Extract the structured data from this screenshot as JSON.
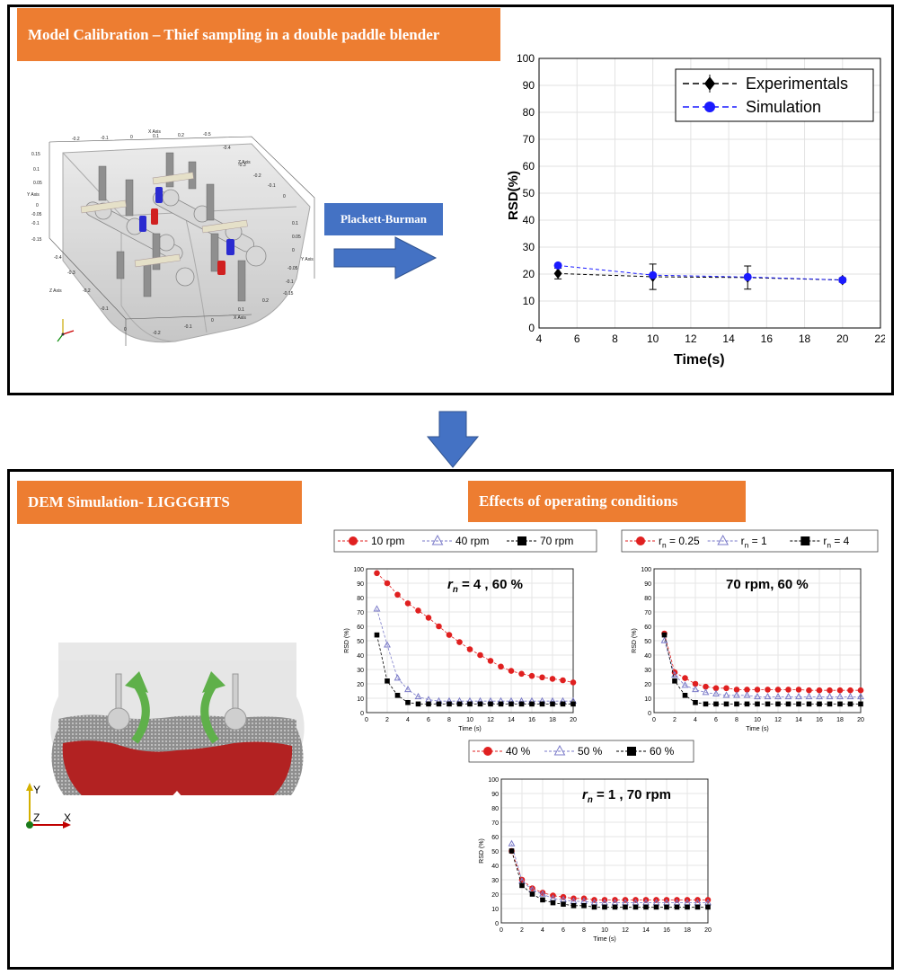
{
  "top_panel": {
    "title": "Model Calibration – Thief sampling in a double paddle blender",
    "method_label": "Plackett-Burman",
    "cad_axes": {
      "x_label": "X Axis",
      "y_label": "Y Axis",
      "z_label": "Z Axis",
      "top_ticks": [
        "-0.2",
        "-0.1",
        "0",
        "0.1",
        "0.2",
        "-0.5"
      ],
      "right_ticks": [
        "-0.4",
        "-0.3",
        "-0.2",
        "-0.1",
        "0",
        "0.05",
        "0.1",
        "0.15"
      ],
      "left_ticks": [
        "0.15",
        "0.1",
        "0.05",
        "0",
        "-0.05",
        "-0.1",
        "-0.15"
      ],
      "bottom_left_ticks": [
        "-0.4",
        "-0.3",
        "-0.2",
        "-0.1",
        "0"
      ],
      "bottom_ticks": [
        "0",
        "-0.2",
        "-0.1",
        "0",
        "0.1",
        "0.2"
      ],
      "right_axis_ticks": [
        "0.1",
        "0.05",
        "0",
        "-0.05",
        "-0.1",
        "-0.15"
      ]
    }
  },
  "bottom_panel": {
    "title_left": "DEM Simulation- LIGGGHTS",
    "title_right": "Effects of operating conditions",
    "axis_triad": {
      "y": "Y",
      "z": "Z",
      "x": "X"
    }
  },
  "chart_data": [
    {
      "id": "calibration",
      "type": "line",
      "xlabel": "Time(s)",
      "ylabel": "RSD(%)",
      "xlim": [
        4,
        22
      ],
      "ylim": [
        0,
        100
      ],
      "xticks": [
        4,
        6,
        8,
        10,
        12,
        14,
        16,
        18,
        20,
        22
      ],
      "yticks": [
        0,
        10,
        20,
        30,
        40,
        50,
        60,
        70,
        80,
        90,
        100
      ],
      "grid": true,
      "legend_position": "top-right",
      "series": [
        {
          "name": "Experimentals",
          "color": "#000000",
          "marker": "diamond",
          "x": [
            5,
            10,
            15,
            20
          ],
          "y": [
            20.2,
            19,
            18.7,
            17.8
          ],
          "err": [
            2,
            4.7,
            4.3,
            0.8
          ]
        },
        {
          "name": "Simulation",
          "color": "#1a1aff",
          "marker": "circle",
          "x": [
            5,
            10,
            15,
            20
          ],
          "y": [
            23.2,
            19.6,
            18.9,
            17.8
          ]
        }
      ]
    },
    {
      "id": "speed",
      "type": "line",
      "annotation": "r_n = 4 , 60 %",
      "xlabel": "Time (s)",
      "ylabel": "RSD (%)",
      "xlim": [
        0,
        20
      ],
      "ylim": [
        0,
        100
      ],
      "xticks": [
        0,
        2,
        4,
        6,
        8,
        10,
        12,
        14,
        16,
        18,
        20
      ],
      "yticks": [
        0,
        10,
        20,
        30,
        40,
        50,
        60,
        70,
        80,
        90,
        100
      ],
      "grid": true,
      "legend_position": "top",
      "x": [
        1,
        2,
        3,
        4,
        5,
        6,
        7,
        8,
        9,
        10,
        11,
        12,
        13,
        14,
        15,
        16,
        17,
        18,
        19,
        20
      ],
      "series": [
        {
          "name": "10 rpm",
          "color": "#e02020",
          "marker": "circle",
          "values": [
            97,
            90,
            82,
            76,
            71,
            66,
            60,
            54,
            49,
            44,
            40,
            36,
            32,
            29,
            27,
            25.5,
            24.5,
            23.5,
            22.5,
            21
          ]
        },
        {
          "name": "40 rpm",
          "color": "#7a7ac8",
          "marker": "triangle",
          "values": [
            72,
            47,
            24,
            16,
            11,
            9,
            8,
            8,
            8,
            8,
            8,
            8,
            8,
            8,
            8,
            8,
            8,
            8,
            8,
            8
          ]
        },
        {
          "name": "70 rpm",
          "color": "#000000",
          "marker": "square",
          "values": [
            54,
            22,
            12,
            7,
            6,
            6,
            6,
            6,
            6,
            6,
            6,
            6,
            6,
            6,
            6,
            6,
            6,
            6,
            6,
            6
          ]
        }
      ]
    },
    {
      "id": "ratio",
      "type": "line",
      "annotation": "70 rpm, 60 %",
      "xlabel": "Time (s)",
      "ylabel": "RSD (%)",
      "xlim": [
        0,
        20
      ],
      "ylim": [
        0,
        100
      ],
      "xticks": [
        0,
        2,
        4,
        6,
        8,
        10,
        12,
        14,
        16,
        18,
        20
      ],
      "yticks": [
        0,
        10,
        20,
        30,
        40,
        50,
        60,
        70,
        80,
        90,
        100
      ],
      "grid": true,
      "legend_position": "top",
      "x": [
        1,
        2,
        3,
        4,
        5,
        6,
        7,
        8,
        9,
        10,
        11,
        12,
        13,
        14,
        15,
        16,
        17,
        18,
        19,
        20
      ],
      "series": [
        {
          "name": "r_n = 0.25",
          "color": "#e02020",
          "marker": "circle",
          "values": [
            55,
            28,
            24,
            20,
            18,
            17,
            17,
            16,
            16,
            16,
            16,
            16,
            16,
            16,
            15.5,
            15.5,
            15.5,
            15.5,
            15.5,
            15.5
          ]
        },
        {
          "name": "r_n = 1",
          "color": "#7a7ac8",
          "marker": "triangle",
          "values": [
            50,
            26,
            19,
            16,
            14,
            13,
            12,
            12,
            12,
            11,
            11,
            11,
            11,
            11,
            11,
            11,
            11,
            11,
            11,
            11
          ]
        },
        {
          "name": "r_n = 4",
          "color": "#000000",
          "marker": "square",
          "values": [
            54,
            22,
            12,
            7,
            6,
            6,
            6,
            6,
            6,
            6,
            6,
            6,
            6,
            6,
            6,
            6,
            6,
            6,
            6,
            6
          ]
        }
      ]
    },
    {
      "id": "fill",
      "type": "line",
      "annotation": "r_n = 1 , 70 rpm",
      "xlabel": "Time (s)",
      "ylabel": "RSD (%)",
      "xlim": [
        0,
        20
      ],
      "ylim": [
        0,
        100
      ],
      "xticks": [
        0,
        2,
        4,
        6,
        8,
        10,
        12,
        14,
        16,
        18,
        20
      ],
      "yticks": [
        0,
        10,
        20,
        30,
        40,
        50,
        60,
        70,
        80,
        90,
        100
      ],
      "grid": true,
      "legend_position": "top",
      "x": [
        1,
        2,
        3,
        4,
        5,
        6,
        7,
        8,
        9,
        10,
        11,
        12,
        13,
        14,
        15,
        16,
        17,
        18,
        19,
        20
      ],
      "series": [
        {
          "name": "40 %",
          "color": "#e02020",
          "marker": "circle",
          "values": [
            50,
            30,
            24,
            21,
            19,
            18,
            17,
            17,
            16,
            16,
            16,
            16,
            16,
            16,
            16,
            16,
            16,
            16,
            16,
            16
          ]
        },
        {
          "name": "50 %",
          "color": "#7a7ac8",
          "marker": "triangle",
          "values": [
            55,
            29,
            23,
            20,
            17,
            16,
            15,
            15,
            14,
            14,
            14,
            14,
            14,
            14,
            14,
            14,
            14,
            14,
            14,
            14
          ]
        },
        {
          "name": "60 %",
          "color": "#000000",
          "marker": "square",
          "values": [
            50,
            26,
            20,
            16,
            14,
            13,
            12,
            12,
            11,
            11,
            11,
            11,
            11,
            11,
            11,
            11,
            11,
            11,
            11,
            11
          ]
        }
      ]
    }
  ],
  "colors": {
    "accent_orange": "#ed7d31",
    "arrow_blue": "#4472c4",
    "particle_red": "#b22222",
    "paddle_arrow_green": "#5fb04a"
  }
}
